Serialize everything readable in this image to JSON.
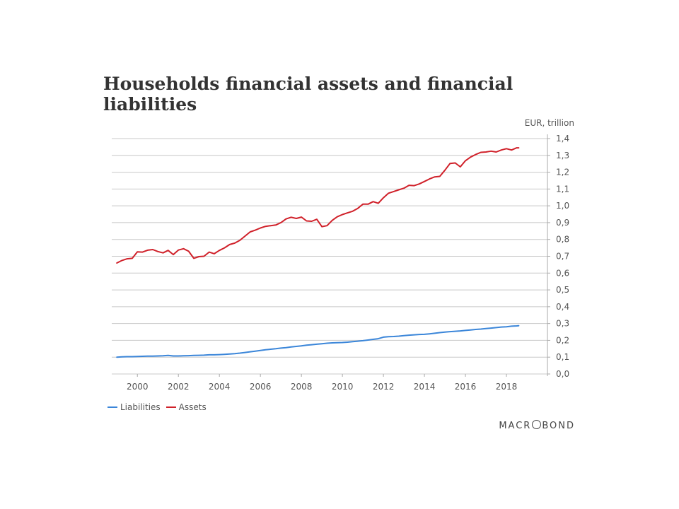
{
  "chart_data": {
    "type": "line",
    "title": "Households financial assets and financial liabilities",
    "unit_label": "EUR, trillion",
    "ylim": [
      0,
      1.4
    ],
    "y_ticks": [
      "0,0",
      "0,1",
      "0,2",
      "0,3",
      "0,4",
      "0,5",
      "0,6",
      "0,7",
      "0,8",
      "0,9",
      "1,0",
      "1,1",
      "1,2",
      "1,3",
      "1,4"
    ],
    "x_ticks": [
      "2000",
      "2002",
      "2004",
      "2006",
      "2008",
      "2010",
      "2012",
      "2014",
      "2016",
      "2018"
    ],
    "x_tick_values": [
      2000,
      2002,
      2004,
      2006,
      2008,
      2010,
      2012,
      2014,
      2016,
      2018
    ],
    "xlim": [
      1998.75,
      2020.0
    ],
    "grid": "horizontal",
    "y_axis_position": "right",
    "legend_position": "bottom-left",
    "x": [
      1999.0,
      1999.25,
      1999.5,
      1999.75,
      2000.0,
      2000.25,
      2000.5,
      2000.75,
      2001.0,
      2001.25,
      2001.5,
      2001.75,
      2002.0,
      2002.25,
      2002.5,
      2002.75,
      2003.0,
      2003.25,
      2003.5,
      2003.75,
      2004.0,
      2004.25,
      2004.5,
      2004.75,
      2005.0,
      2005.25,
      2005.5,
      2005.75,
      2006.0,
      2006.25,
      2006.5,
      2006.75,
      2007.0,
      2007.25,
      2007.5,
      2007.75,
      2008.0,
      2008.25,
      2008.5,
      2008.75,
      2009.0,
      2009.25,
      2009.5,
      2009.75,
      2010.0,
      2010.25,
      2010.5,
      2010.75,
      2011.0,
      2011.25,
      2011.5,
      2011.75,
      2012.0,
      2012.25,
      2012.5,
      2012.75,
      2013.0,
      2013.25,
      2013.5,
      2013.75,
      2014.0,
      2014.25,
      2014.5,
      2014.75,
      2015.0,
      2015.25,
      2015.5,
      2015.75,
      2016.0,
      2016.25,
      2016.5,
      2016.75,
      2017.0,
      2017.25,
      2017.5,
      2017.75,
      2018.0,
      2018.25,
      2018.5,
      2018.6
    ],
    "series": [
      {
        "name": "Liabilities",
        "color": "#3b86d9",
        "values": [
          0.1,
          0.102,
          0.103,
          0.103,
          0.104,
          0.105,
          0.106,
          0.106,
          0.107,
          0.108,
          0.11,
          0.107,
          0.107,
          0.108,
          0.109,
          0.11,
          0.111,
          0.112,
          0.114,
          0.114,
          0.115,
          0.117,
          0.119,
          0.121,
          0.124,
          0.128,
          0.132,
          0.136,
          0.14,
          0.144,
          0.147,
          0.15,
          0.154,
          0.157,
          0.161,
          0.164,
          0.167,
          0.171,
          0.174,
          0.177,
          0.18,
          0.183,
          0.185,
          0.186,
          0.187,
          0.189,
          0.192,
          0.195,
          0.198,
          0.202,
          0.206,
          0.21,
          0.219,
          0.222,
          0.223,
          0.225,
          0.228,
          0.231,
          0.233,
          0.235,
          0.236,
          0.239,
          0.242,
          0.246,
          0.249,
          0.252,
          0.254,
          0.256,
          0.259,
          0.262,
          0.265,
          0.267,
          0.27,
          0.273,
          0.276,
          0.279,
          0.281,
          0.284,
          0.286,
          0.287
        ]
      },
      {
        "name": "Assets",
        "color": "#d0212a",
        "values": [
          0.66,
          0.675,
          0.685,
          0.688,
          0.726,
          0.725,
          0.736,
          0.74,
          0.728,
          0.72,
          0.735,
          0.71,
          0.737,
          0.745,
          0.73,
          0.688,
          0.698,
          0.7,
          0.725,
          0.715,
          0.735,
          0.75,
          0.77,
          0.778,
          0.795,
          0.82,
          0.845,
          0.855,
          0.868,
          0.878,
          0.882,
          0.886,
          0.9,
          0.922,
          0.932,
          0.925,
          0.933,
          0.91,
          0.908,
          0.92,
          0.876,
          0.882,
          0.913,
          0.935,
          0.948,
          0.958,
          0.968,
          0.985,
          1.01,
          1.01,
          1.025,
          1.015,
          1.048,
          1.075,
          1.085,
          1.095,
          1.105,
          1.122,
          1.12,
          1.13,
          1.145,
          1.16,
          1.172,
          1.175,
          1.212,
          1.252,
          1.255,
          1.232,
          1.268,
          1.29,
          1.305,
          1.318,
          1.32,
          1.325,
          1.32,
          1.332,
          1.34,
          1.332,
          1.345,
          1.345
        ]
      }
    ]
  },
  "brand": {
    "text_before": "MACR",
    "text_after": "BOND"
  }
}
